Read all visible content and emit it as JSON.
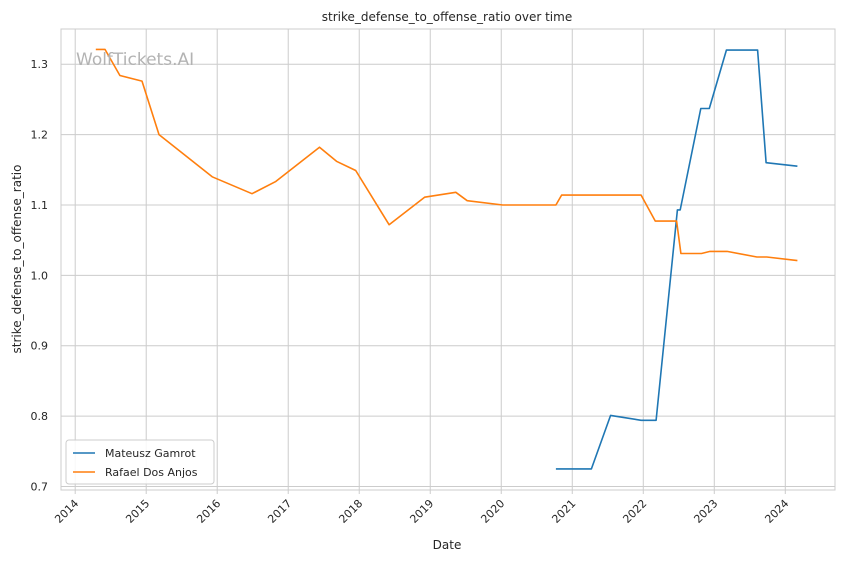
{
  "chart_data": {
    "type": "line",
    "title": "strike_defense_to_offense_ratio over time",
    "xlabel": "Date",
    "ylabel": "strike_defense_to_offense_ratio",
    "watermark": "WolfTickets.AI",
    "xlim": [
      2013.8,
      2024.7
    ],
    "ylim": [
      0.695,
      1.35
    ],
    "x_ticks": [
      2014,
      2015,
      2016,
      2017,
      2018,
      2019,
      2020,
      2021,
      2022,
      2023,
      2024
    ],
    "y_ticks": [
      0.7,
      0.8,
      0.9,
      1.0,
      1.1,
      1.2,
      1.3
    ],
    "grid": true,
    "legend_position": "lower-left",
    "series": [
      {
        "name": "Mateusz Gamrot",
        "color": "#1f77b4",
        "x": [
          2020.77,
          2021.27,
          2021.54,
          2021.97,
          2022.18,
          2022.48,
          2022.52,
          2022.81,
          2022.93,
          2023.17,
          2023.61,
          2023.73,
          2024.17
        ],
        "y": [
          0.725,
          0.725,
          0.801,
          0.794,
          0.794,
          1.093,
          1.093,
          1.237,
          1.237,
          1.32,
          1.32,
          1.16,
          1.155
        ]
      },
      {
        "name": "Rafael Dos Anjos",
        "color": "#ff7f0e",
        "x": [
          2014.29,
          2014.42,
          2014.63,
          2014.94,
          2015.18,
          2015.93,
          2016.49,
          2016.82,
          2017.44,
          2017.68,
          2017.95,
          2018.42,
          2018.92,
          2019.36,
          2019.52,
          2020.02,
          2020.77,
          2020.85,
          2021.97,
          2022.17,
          2022.47,
          2022.53,
          2022.82,
          2022.94,
          2023.18,
          2023.6,
          2023.74,
          2024.17
        ],
        "y": [
          1.321,
          1.321,
          1.284,
          1.276,
          1.2,
          1.14,
          1.116,
          1.133,
          1.182,
          1.162,
          1.149,
          1.072,
          1.111,
          1.118,
          1.106,
          1.1,
          1.1,
          1.114,
          1.114,
          1.077,
          1.077,
          1.031,
          1.031,
          1.034,
          1.034,
          1.026,
          1.026,
          1.021
        ]
      }
    ]
  }
}
